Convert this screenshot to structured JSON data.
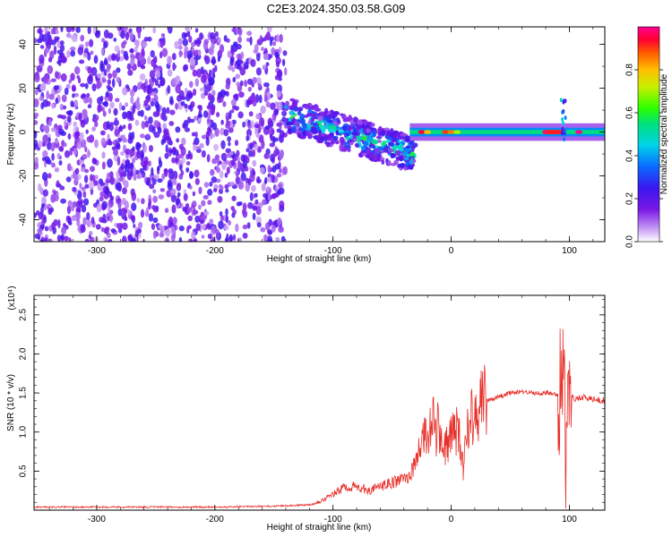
{
  "title": "C2E3.2024.350.03.58.G09",
  "chart_data": [
    {
      "type": "heatmap",
      "xlabel": "Height of straight line (km)",
      "ylabel": "Frequency (Hz)",
      "xlim": [
        -353,
        130
      ],
      "ylim": [
        -50,
        48
      ],
      "xticks": [
        -300,
        -200,
        -100,
        0,
        100
      ],
      "yticks": [
        -40,
        -20,
        0,
        20,
        40
      ],
      "colorbar": {
        "label": "Normalized spectral amplitude",
        "range": [
          0.0,
          1.0
        ],
        "ticks": [
          "0.0",
          "0.2",
          "0.4",
          "0.6",
          "0.8"
        ],
        "tick_values": [
          0.0,
          0.2,
          0.4,
          0.6,
          0.8
        ]
      },
      "features": {
        "noise_region_x": [
          -353,
          -140
        ],
        "noise_amplitude": 0.2,
        "scatter_region_x": [
          -140,
          -30
        ],
        "scatter_band_slope_hz_per_km": -0.17,
        "scatter_amplitude_max": 0.55,
        "signal_frequency_hz": 0,
        "signal_amplitude_range": [
          0.45,
          1.0
        ],
        "peak_x": [
          80,
          95
        ],
        "peak_amplitude": 1.0
      }
    },
    {
      "type": "line",
      "xlabel": "Height of straight line (km)",
      "ylabel": "SNR (10 * v/v)",
      "y_multiplier": "(x10⁴)",
      "xlim": [
        -353,
        130
      ],
      "ylim": [
        0,
        2.75
      ],
      "xticks": [
        -300,
        -200,
        -100,
        0,
        100
      ],
      "yticks": [
        "0.5",
        "1.0",
        "1.5",
        "2.0",
        "2.5"
      ],
      "ytick_values": [
        0.5,
        1.0,
        1.5,
        2.0,
        2.5
      ],
      "series": [
        {
          "color": "#e8302a",
          "x": [
            -353,
            -300,
            -250,
            -200,
            -150,
            -120,
            -110,
            -100,
            -90,
            -80,
            -70,
            -60,
            -50,
            -40,
            -35,
            -30,
            -25,
            -20,
            -15,
            -10,
            -5,
            0,
            5,
            10,
            15,
            20,
            25,
            30,
            40,
            50,
            60,
            70,
            80,
            90,
            95,
            97,
            99,
            100,
            102,
            105,
            110,
            120,
            130
          ],
          "y": [
            0.04,
            0.04,
            0.04,
            0.04,
            0.05,
            0.07,
            0.12,
            0.2,
            0.3,
            0.3,
            0.25,
            0.3,
            0.35,
            0.4,
            0.45,
            0.6,
            0.9,
            1.0,
            1.1,
            1.0,
            0.8,
            0.9,
            1.1,
            0.55,
            1.2,
            1.3,
            1.35,
            1.4,
            1.45,
            1.5,
            1.52,
            1.5,
            1.5,
            1.48,
            1.6,
            0.8,
            2.4,
            1.0,
            1.45,
            1.42,
            1.45,
            1.42,
            1.4
          ]
        }
      ]
    }
  ]
}
